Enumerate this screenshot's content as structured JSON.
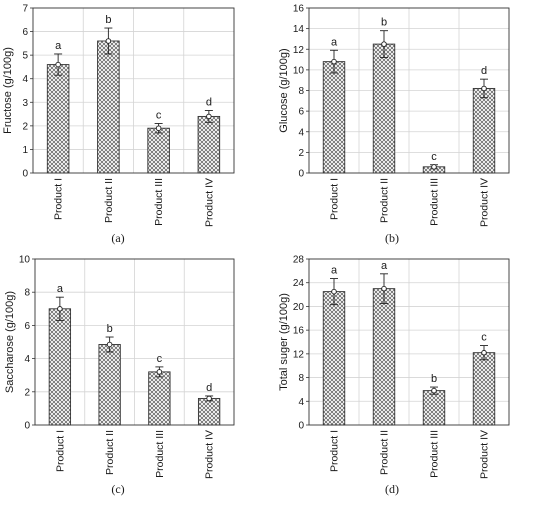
{
  "chart_data": [
    {
      "type": "bar",
      "panel_label": "(a)",
      "ylabel": "Fructose (g/100g)",
      "categories": [
        "Product I",
        "Product II",
        "Product III",
        "Product IV"
      ],
      "values": [
        4.6,
        5.6,
        1.9,
        2.4
      ],
      "errors": [
        0.45,
        0.55,
        0.2,
        0.25
      ],
      "significance": [
        "a",
        "b",
        "c",
        "d"
      ],
      "ylim": [
        0,
        7
      ],
      "yticks": [
        0,
        1,
        2,
        3,
        4,
        5,
        6,
        7
      ],
      "grid": true
    },
    {
      "type": "bar",
      "panel_label": "(b)",
      "ylabel": "Glucose (g/100g)",
      "categories": [
        "Product I",
        "Product II",
        "Product III",
        "Product IV"
      ],
      "values": [
        10.8,
        12.5,
        0.6,
        8.2
      ],
      "errors": [
        1.1,
        1.3,
        0.2,
        0.9
      ],
      "significance": [
        "a",
        "b",
        "c",
        "d"
      ],
      "ylim": [
        0,
        16
      ],
      "yticks": [
        0,
        2,
        4,
        6,
        8,
        10,
        12,
        14,
        16
      ],
      "grid": true
    },
    {
      "type": "bar",
      "panel_label": "(c)",
      "ylabel": "Saccharose (g/100g)",
      "categories": [
        "Product I",
        "Product II",
        "Product III",
        "Product IV"
      ],
      "values": [
        7.0,
        4.85,
        3.2,
        1.6
      ],
      "errors": [
        0.7,
        0.45,
        0.3,
        0.15
      ],
      "significance": [
        "a",
        "b",
        "c",
        "d"
      ],
      "ylim": [
        0,
        10
      ],
      "yticks": [
        0,
        2,
        4,
        6,
        8,
        10
      ],
      "grid": true
    },
    {
      "type": "bar",
      "panel_label": "(d)",
      "ylabel": "Total suger (g/100g)",
      "categories": [
        "Product I",
        "Product II",
        "Product III",
        "Product IV"
      ],
      "values": [
        22.5,
        23.0,
        5.8,
        12.2
      ],
      "errors": [
        2.2,
        2.5,
        0.6,
        1.2
      ],
      "significance": [
        "a",
        "a",
        "b",
        "c"
      ],
      "ylim": [
        0,
        28
      ],
      "yticks": [
        0,
        4,
        8,
        12,
        16,
        20,
        24,
        28
      ],
      "grid": true
    }
  ]
}
